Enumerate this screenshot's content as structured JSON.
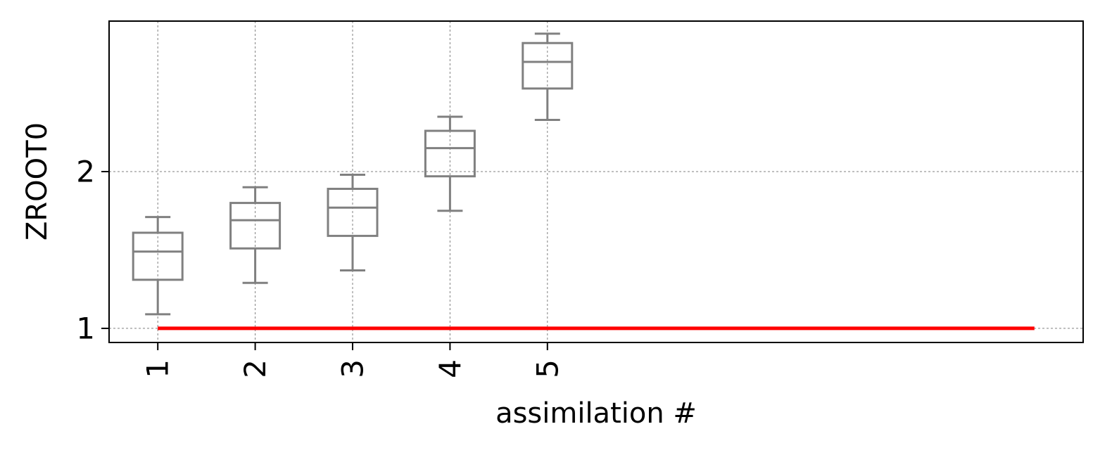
{
  "chart_data": {
    "type": "box",
    "xlabel": "assimilation #",
    "ylabel": "ZROOT0",
    "categories": [
      "1",
      "2",
      "3",
      "4",
      "5"
    ],
    "x_positions": [
      1,
      2,
      3,
      4,
      5
    ],
    "xlim": [
      0.5,
      10.5
    ],
    "ylim": [
      0.91,
      2.96
    ],
    "yticks": [
      1,
      2
    ],
    "ytick_labels": [
      "1",
      "2"
    ],
    "grid": true,
    "boxes": [
      {
        "x": 1,
        "whisker_low": 1.09,
        "q1": 1.31,
        "median": 1.49,
        "q3": 1.61,
        "whisker_high": 1.71
      },
      {
        "x": 2,
        "whisker_low": 1.29,
        "q1": 1.51,
        "median": 1.69,
        "q3": 1.8,
        "whisker_high": 1.9
      },
      {
        "x": 3,
        "whisker_low": 1.37,
        "q1": 1.59,
        "median": 1.77,
        "q3": 1.89,
        "whisker_high": 1.98
      },
      {
        "x": 4,
        "whisker_low": 1.75,
        "q1": 1.97,
        "median": 2.15,
        "q3": 2.26,
        "whisker_high": 2.35
      },
      {
        "x": 5,
        "whisker_low": 2.33,
        "q1": 2.53,
        "median": 2.7,
        "q3": 2.82,
        "whisker_high": 2.88
      }
    ],
    "reference_line": {
      "y": 1,
      "x_start": 1,
      "x_end": 10,
      "color": "#ff0000"
    },
    "colors": {
      "box": "#808080",
      "grid": "#808080",
      "axes": "#000000"
    }
  }
}
